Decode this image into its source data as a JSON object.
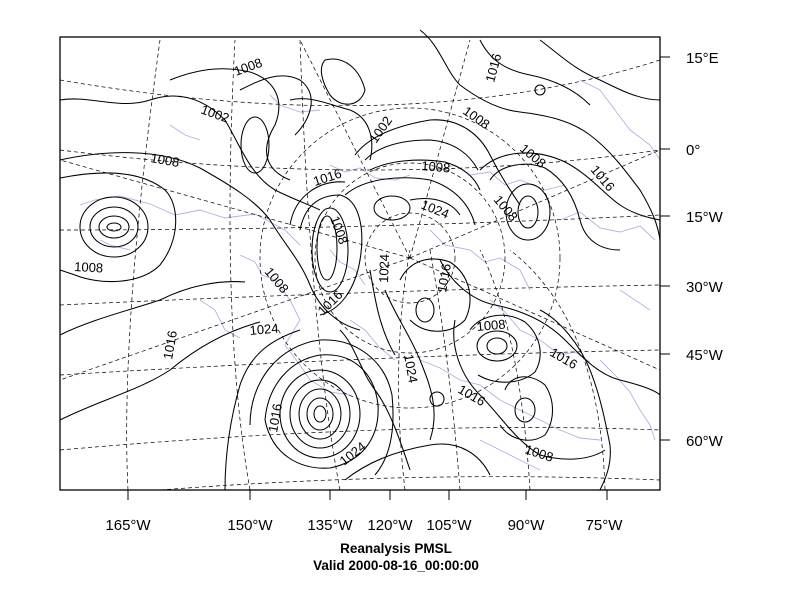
{
  "map": {
    "title_line1": "Reanalysis PMSL",
    "title_line2": "Valid 2000-08-16_00:00:00",
    "lon_labels": [
      "165°W",
      "150°W",
      "135°W",
      "120°W",
      "105°W",
      "90°W",
      "75°W"
    ],
    "lat_labels": [
      "15°E",
      "0°",
      "15°W",
      "30°W",
      "45°W",
      "60°W"
    ],
    "contour_labels": [
      "1008",
      "1002",
      "1008",
      "1016",
      "1008",
      "1008",
      "1016",
      "1008",
      "1024",
      "1008",
      "1024",
      "1008",
      "1016",
      "1002",
      "1008",
      "1016",
      "1008",
      "1016",
      "1024",
      "1016",
      "1008",
      "1016",
      "1024",
      "1016",
      "1008",
      "1016",
      "1024",
      "1016",
      "1008"
    ],
    "colors": {
      "contour": "#000000",
      "coastline": "#b39ddb",
      "frame": "#000000"
    }
  }
}
